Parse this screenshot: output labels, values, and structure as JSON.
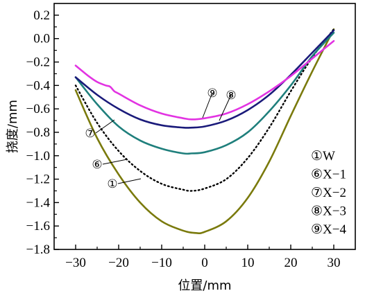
{
  "chart_data": {
    "type": "line",
    "title": "",
    "xlabel": "位置/mm",
    "ylabel": "挠度/mm",
    "xlim": [
      -35,
      35
    ],
    "ylim": [
      -1.8,
      0.3
    ],
    "xticks": [
      -30,
      -20,
      -10,
      0,
      10,
      20,
      30
    ],
    "yticks": [
      0.2,
      0.0,
      -0.2,
      -0.4,
      -0.6,
      -0.8,
      -1.0,
      -1.2,
      -1.4,
      -1.6,
      -1.8
    ],
    "xtick_labels": [
      "−30",
      "−20",
      "−10",
      "0",
      "10",
      "20",
      "30"
    ],
    "ytick_labels": [
      "0.2",
      "0.0",
      "−0.2",
      "−0.4",
      "−0.6",
      "−0.8",
      "−1.0",
      "−1.2",
      "−1.4",
      "−1.6",
      "−1.8"
    ],
    "grid": false,
    "legend_position": "bottom-right",
    "series": [
      {
        "key": "1",
        "name": "W",
        "marker": "①",
        "color": "#7a7a0c",
        "style": "solid",
        "x": [
          -30,
          -25,
          -20,
          -15,
          -10,
          -5,
          -2,
          0,
          5,
          10,
          15,
          20,
          25,
          30
        ],
        "y": [
          -0.44,
          -0.85,
          -1.16,
          -1.4,
          -1.56,
          -1.64,
          -1.66,
          -1.65,
          -1.56,
          -1.36,
          -1.05,
          -0.66,
          -0.28,
          0.08
        ]
      },
      {
        "key": "6",
        "name": "X−1",
        "marker": "⑥",
        "color": "#000000",
        "style": "dotted",
        "x": [
          -30,
          -25,
          -20,
          -15,
          -10,
          -5,
          -3,
          0,
          5,
          10,
          15,
          20,
          25,
          30
        ],
        "y": [
          -0.4,
          -0.72,
          -0.96,
          -1.13,
          -1.24,
          -1.29,
          -1.3,
          -1.28,
          -1.2,
          -1.02,
          -0.76,
          -0.45,
          -0.16,
          0.08
        ]
      },
      {
        "key": "7",
        "name": "X−2",
        "marker": "⑦",
        "color": "#1f7f7c",
        "style": "solid",
        "x": [
          -30,
          -25,
          -20,
          -15,
          -10,
          -5,
          -3,
          0,
          5,
          10,
          15,
          20,
          25,
          30
        ],
        "y": [
          -0.33,
          -0.56,
          -0.75,
          -0.87,
          -0.94,
          -0.98,
          -0.98,
          -0.97,
          -0.91,
          -0.8,
          -0.62,
          -0.4,
          -0.15,
          0.05
        ]
      },
      {
        "key": "8",
        "name": "X−3",
        "marker": "⑧",
        "color": "#1a1a7a",
        "style": "solid",
        "x": [
          -30,
          -25,
          -20,
          -15,
          -10,
          -5,
          -3,
          0,
          5,
          10,
          15,
          20,
          25,
          30
        ],
        "y": [
          -0.33,
          -0.48,
          -0.6,
          -0.69,
          -0.74,
          -0.76,
          -0.76,
          -0.75,
          -0.7,
          -0.61,
          -0.48,
          -0.31,
          -0.12,
          0.07
        ]
      },
      {
        "key": "9",
        "name": "X−4",
        "marker": "⑨",
        "color": "#e233e2",
        "style": "solid",
        "x": [
          -30,
          -27,
          -25,
          -23,
          -22,
          -21,
          -20,
          -15,
          -10,
          -5,
          -3,
          0,
          5,
          10,
          15,
          20,
          25,
          30
        ],
        "y": [
          -0.23,
          -0.32,
          -0.37,
          -0.4,
          -0.41,
          -0.45,
          -0.47,
          -0.57,
          -0.64,
          -0.68,
          -0.69,
          -0.68,
          -0.64,
          -0.56,
          -0.45,
          -0.32,
          -0.17,
          -0.02
        ]
      }
    ],
    "callouts": [
      {
        "key": "1",
        "label": "①"
      },
      {
        "key": "6",
        "label": "⑥"
      },
      {
        "key": "7",
        "label": "⑦"
      },
      {
        "key": "8",
        "label": "⑧"
      },
      {
        "key": "9",
        "label": "⑨"
      }
    ]
  }
}
